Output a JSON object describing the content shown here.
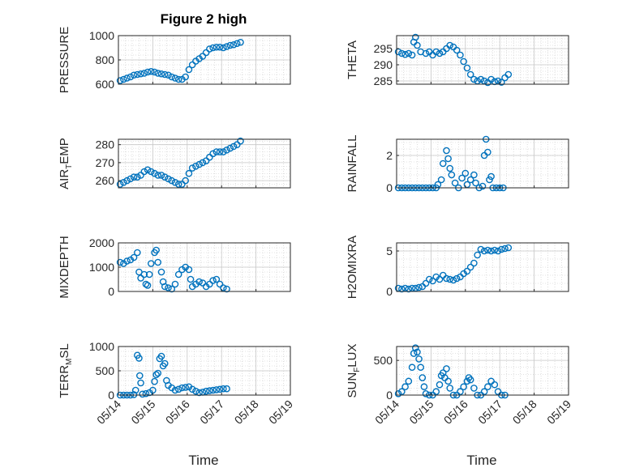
{
  "figure": {
    "title": "Figure 2 high"
  },
  "colors": {
    "marker": "#0072BD",
    "axis": "#262626",
    "grid": "#c7c7c7"
  },
  "chart_data": [
    {
      "type": "scatter",
      "id": "pressure",
      "col": 0,
      "row": 0,
      "ylabel": "PRESSURE",
      "ylim": [
        600,
        1000
      ],
      "yticks": [
        600,
        800,
        1000
      ],
      "xlim": [
        0,
        5
      ],
      "xticks": [
        "05/14",
        "05/15",
        "05/16",
        "05/17",
        "05/18",
        "05/19"
      ],
      "grid": true,
      "points": [
        [
          0.05,
          630
        ],
        [
          0.15,
          640
        ],
        [
          0.25,
          650
        ],
        [
          0.35,
          660
        ],
        [
          0.45,
          675
        ],
        [
          0.55,
          680
        ],
        [
          0.65,
          685
        ],
        [
          0.75,
          690
        ],
        [
          0.85,
          700
        ],
        [
          0.95,
          705
        ],
        [
          1.05,
          700
        ],
        [
          1.15,
          690
        ],
        [
          1.25,
          685
        ],
        [
          1.35,
          680
        ],
        [
          1.45,
          675
        ],
        [
          1.55,
          660
        ],
        [
          1.65,
          650
        ],
        [
          1.75,
          640
        ],
        [
          1.85,
          640
        ],
        [
          1.95,
          660
        ],
        [
          2.05,
          720
        ],
        [
          2.15,
          760
        ],
        [
          2.25,
          790
        ],
        [
          2.35,
          810
        ],
        [
          2.45,
          830
        ],
        [
          2.55,
          860
        ],
        [
          2.65,
          890
        ],
        [
          2.75,
          900
        ],
        [
          2.85,
          905
        ],
        [
          2.95,
          905
        ],
        [
          3.05,
          900
        ],
        [
          3.15,
          910
        ],
        [
          3.25,
          920
        ],
        [
          3.35,
          925
        ],
        [
          3.45,
          935
        ],
        [
          3.55,
          945
        ]
      ]
    },
    {
      "type": "scatter",
      "id": "theta",
      "col": 1,
      "row": 0,
      "ylabel": "THETA",
      "ylim": [
        284,
        299
      ],
      "yticks": [
        285,
        290,
        295
      ],
      "xlim": [
        0,
        5
      ],
      "xticks": [
        "05/14",
        "05/15",
        "05/16",
        "05/17",
        "05/18",
        "05/19"
      ],
      "grid": true,
      "points": [
        [
          0.05,
          294
        ],
        [
          0.15,
          293.5
        ],
        [
          0.25,
          293.2
        ],
        [
          0.35,
          293.5
        ],
        [
          0.45,
          293
        ],
        [
          0.5,
          297
        ],
        [
          0.55,
          298.5
        ],
        [
          0.6,
          296
        ],
        [
          0.7,
          294
        ],
        [
          0.85,
          293.5
        ],
        [
          0.95,
          294
        ],
        [
          1.05,
          293
        ],
        [
          1.15,
          294
        ],
        [
          1.25,
          293.5
        ],
        [
          1.35,
          294
        ],
        [
          1.45,
          295
        ],
        [
          1.55,
          296
        ],
        [
          1.65,
          295.5
        ],
        [
          1.75,
          294.5
        ],
        [
          1.85,
          293
        ],
        [
          1.95,
          291
        ],
        [
          2.05,
          289
        ],
        [
          2.15,
          287
        ],
        [
          2.25,
          285.5
        ],
        [
          2.35,
          285
        ],
        [
          2.45,
          285.5
        ],
        [
          2.55,
          285
        ],
        [
          2.65,
          284.5
        ],
        [
          2.75,
          285.5
        ],
        [
          2.85,
          284.8
        ],
        [
          2.95,
          285
        ],
        [
          3.05,
          284.6
        ],
        [
          3.15,
          286
        ],
        [
          3.25,
          287
        ]
      ]
    },
    {
      "type": "scatter",
      "id": "air_temp",
      "col": 0,
      "row": 1,
      "ylabel": "AIR_TEMP",
      "ylim": [
        256,
        283
      ],
      "yticks": [
        260,
        270,
        280
      ],
      "xlim": [
        0,
        5
      ],
      "xticks": [
        "05/14",
        "05/15",
        "05/16",
        "05/17",
        "05/18",
        "05/19"
      ],
      "grid": true,
      "points": [
        [
          0.05,
          258
        ],
        [
          0.15,
          259
        ],
        [
          0.25,
          260
        ],
        [
          0.35,
          261
        ],
        [
          0.45,
          262
        ],
        [
          0.55,
          262
        ],
        [
          0.65,
          263
        ],
        [
          0.75,
          265
        ],
        [
          0.85,
          266
        ],
        [
          0.95,
          265
        ],
        [
          1.05,
          264
        ],
        [
          1.15,
          263
        ],
        [
          1.25,
          263
        ],
        [
          1.35,
          262
        ],
        [
          1.45,
          261
        ],
        [
          1.55,
          260
        ],
        [
          1.65,
          259
        ],
        [
          1.75,
          258
        ],
        [
          1.85,
          258
        ],
        [
          1.95,
          260
        ],
        [
          2.05,
          264
        ],
        [
          2.15,
          267
        ],
        [
          2.25,
          268
        ],
        [
          2.35,
          269
        ],
        [
          2.45,
          270
        ],
        [
          2.55,
          271
        ],
        [
          2.65,
          273
        ],
        [
          2.75,
          275
        ],
        [
          2.85,
          276
        ],
        [
          2.95,
          276
        ],
        [
          3.05,
          276
        ],
        [
          3.15,
          277
        ],
        [
          3.25,
          278
        ],
        [
          3.35,
          279
        ],
        [
          3.45,
          280
        ],
        [
          3.55,
          282
        ]
      ]
    },
    {
      "type": "scatter",
      "id": "rainfall",
      "col": 1,
      "row": 1,
      "ylabel": "RAINFALL",
      "ylim": [
        0,
        3
      ],
      "yticks": [
        0,
        2
      ],
      "xlim": [
        0,
        5
      ],
      "xticks": [
        "05/14",
        "05/15",
        "05/16",
        "05/17",
        "05/18",
        "05/19"
      ],
      "grid": true,
      "points": [
        [
          0.05,
          0
        ],
        [
          0.15,
          0
        ],
        [
          0.25,
          0
        ],
        [
          0.35,
          0
        ],
        [
          0.45,
          0
        ],
        [
          0.55,
          0
        ],
        [
          0.65,
          0
        ],
        [
          0.75,
          0
        ],
        [
          0.85,
          0
        ],
        [
          0.95,
          0
        ],
        [
          1.05,
          0
        ],
        [
          1.15,
          0
        ],
        [
          1.2,
          0.2
        ],
        [
          1.3,
          0.5
        ],
        [
          1.35,
          1.5
        ],
        [
          1.45,
          2.3
        ],
        [
          1.5,
          1.8
        ],
        [
          1.55,
          1.2
        ],
        [
          1.6,
          0.8
        ],
        [
          1.7,
          0.3
        ],
        [
          1.8,
          0
        ],
        [
          1.9,
          0.6
        ],
        [
          2.0,
          0.9
        ],
        [
          2.05,
          0.2
        ],
        [
          2.15,
          0.5
        ],
        [
          2.25,
          0.8
        ],
        [
          2.3,
          0.3
        ],
        [
          2.4,
          0
        ],
        [
          2.5,
          0.1
        ],
        [
          2.55,
          2.0
        ],
        [
          2.6,
          3.0
        ],
        [
          2.65,
          2.2
        ],
        [
          2.7,
          0.5
        ],
        [
          2.75,
          0.7
        ],
        [
          2.8,
          0
        ],
        [
          2.9,
          0
        ],
        [
          3.0,
          0
        ],
        [
          3.1,
          0
        ]
      ]
    },
    {
      "type": "scatter",
      "id": "mixdepth",
      "col": 0,
      "row": 2,
      "ylabel": "MIXDEPTH",
      "ylim": [
        0,
        2000
      ],
      "yticks": [
        0,
        1000,
        2000
      ],
      "xlim": [
        0,
        5
      ],
      "xticks": [
        "05/14",
        "05/15",
        "05/16",
        "05/17",
        "05/18",
        "05/19"
      ],
      "grid": true,
      "points": [
        [
          0.05,
          1200
        ],
        [
          0.15,
          1150
        ],
        [
          0.25,
          1250
        ],
        [
          0.35,
          1300
        ],
        [
          0.45,
          1400
        ],
        [
          0.55,
          1600
        ],
        [
          0.6,
          800
        ],
        [
          0.65,
          550
        ],
        [
          0.75,
          700
        ],
        [
          0.8,
          300
        ],
        [
          0.85,
          250
        ],
        [
          0.9,
          700
        ],
        [
          0.95,
          1150
        ],
        [
          1.05,
          1600
        ],
        [
          1.1,
          1700
        ],
        [
          1.15,
          1200
        ],
        [
          1.25,
          800
        ],
        [
          1.3,
          400
        ],
        [
          1.35,
          200
        ],
        [
          1.45,
          150
        ],
        [
          1.55,
          100
        ],
        [
          1.65,
          300
        ],
        [
          1.75,
          700
        ],
        [
          1.85,
          900
        ],
        [
          1.95,
          1000
        ],
        [
          2.05,
          900
        ],
        [
          2.1,
          500
        ],
        [
          2.15,
          200
        ],
        [
          2.25,
          300
        ],
        [
          2.35,
          400
        ],
        [
          2.45,
          350
        ],
        [
          2.55,
          200
        ],
        [
          2.65,
          300
        ],
        [
          2.75,
          450
        ],
        [
          2.85,
          500
        ],
        [
          2.95,
          300
        ],
        [
          3.05,
          150
        ],
        [
          3.15,
          100
        ]
      ]
    },
    {
      "type": "scatter",
      "id": "h2omixra",
      "col": 1,
      "row": 2,
      "ylabel": "H2OMIXRA",
      "ylim": [
        0,
        6
      ],
      "yticks": [
        0,
        5
      ],
      "xlim": [
        0,
        5
      ],
      "xticks": [
        "05/14",
        "05/15",
        "05/16",
        "05/17",
        "05/18",
        "05/19"
      ],
      "grid": true,
      "points": [
        [
          0.05,
          0.4
        ],
        [
          0.15,
          0.3
        ],
        [
          0.25,
          0.4
        ],
        [
          0.35,
          0.3
        ],
        [
          0.45,
          0.4
        ],
        [
          0.55,
          0.4
        ],
        [
          0.65,
          0.5
        ],
        [
          0.75,
          0.6
        ],
        [
          0.85,
          1.0
        ],
        [
          0.95,
          1.5
        ],
        [
          1.05,
          1.3
        ],
        [
          1.15,
          1.8
        ],
        [
          1.25,
          1.5
        ],
        [
          1.35,
          2.0
        ],
        [
          1.45,
          1.6
        ],
        [
          1.55,
          1.5
        ],
        [
          1.65,
          1.4
        ],
        [
          1.75,
          1.6
        ],
        [
          1.85,
          1.8
        ],
        [
          1.95,
          2.2
        ],
        [
          2.05,
          2.5
        ],
        [
          2.15,
          3.0
        ],
        [
          2.25,
          3.5
        ],
        [
          2.35,
          4.5
        ],
        [
          2.45,
          5.2
        ],
        [
          2.55,
          5.0
        ],
        [
          2.65,
          5.1
        ],
        [
          2.75,
          5.0
        ],
        [
          2.85,
          5.1
        ],
        [
          2.95,
          5.0
        ],
        [
          3.05,
          5.2
        ],
        [
          3.15,
          5.3
        ],
        [
          3.25,
          5.4
        ]
      ]
    },
    {
      "type": "scatter",
      "id": "terr_msl",
      "col": 0,
      "row": 3,
      "ylabel": "TERR_MSL",
      "ylim": [
        0,
        1000
      ],
      "yticks": [
        0,
        500,
        1000
      ],
      "xlim": [
        0,
        5
      ],
      "xticks": [
        "05/14",
        "05/15",
        "05/16",
        "05/17",
        "05/18",
        "05/19"
      ],
      "grid": true,
      "points": [
        [
          0.05,
          0
        ],
        [
          0.15,
          0
        ],
        [
          0.25,
          0
        ],
        [
          0.35,
          0
        ],
        [
          0.45,
          10
        ],
        [
          0.5,
          100
        ],
        [
          0.55,
          820
        ],
        [
          0.6,
          760
        ],
        [
          0.62,
          400
        ],
        [
          0.65,
          250
        ],
        [
          0.7,
          20
        ],
        [
          0.8,
          30
        ],
        [
          0.9,
          50
        ],
        [
          1.0,
          100
        ],
        [
          1.05,
          280
        ],
        [
          1.1,
          420
        ],
        [
          1.15,
          450
        ],
        [
          1.2,
          750
        ],
        [
          1.25,
          800
        ],
        [
          1.3,
          600
        ],
        [
          1.35,
          650
        ],
        [
          1.4,
          300
        ],
        [
          1.45,
          200
        ],
        [
          1.55,
          150
        ],
        [
          1.65,
          100
        ],
        [
          1.75,
          120
        ],
        [
          1.85,
          150
        ],
        [
          1.95,
          160
        ],
        [
          2.05,
          170
        ],
        [
          2.15,
          120
        ],
        [
          2.25,
          80
        ],
        [
          2.35,
          50
        ],
        [
          2.45,
          60
        ],
        [
          2.55,
          80
        ],
        [
          2.65,
          90
        ],
        [
          2.75,
          100
        ],
        [
          2.85,
          110
        ],
        [
          2.95,
          120
        ],
        [
          3.05,
          130
        ],
        [
          3.15,
          130
        ]
      ]
    },
    {
      "type": "scatter",
      "id": "sun_flux",
      "col": 1,
      "row": 3,
      "ylabel": "SUN_FLUX",
      "ylim": [
        0,
        700
      ],
      "yticks": [
        0,
        500
      ],
      "xlim": [
        0,
        5
      ],
      "xticks": [
        "05/14",
        "05/15",
        "05/16",
        "05/17",
        "05/18",
        "05/19"
      ],
      "grid": true,
      "points": [
        [
          0.05,
          20
        ],
        [
          0.15,
          50
        ],
        [
          0.25,
          120
        ],
        [
          0.35,
          200
        ],
        [
          0.45,
          400
        ],
        [
          0.5,
          600
        ],
        [
          0.55,
          680
        ],
        [
          0.6,
          620
        ],
        [
          0.65,
          520
        ],
        [
          0.7,
          400
        ],
        [
          0.75,
          250
        ],
        [
          0.8,
          120
        ],
        [
          0.85,
          20
        ],
        [
          0.95,
          0
        ],
        [
          1.05,
          0
        ],
        [
          1.15,
          50
        ],
        [
          1.25,
          150
        ],
        [
          1.3,
          280
        ],
        [
          1.35,
          320
        ],
        [
          1.4,
          250
        ],
        [
          1.45,
          380
        ],
        [
          1.5,
          200
        ],
        [
          1.55,
          100
        ],
        [
          1.65,
          0
        ],
        [
          1.75,
          0
        ],
        [
          1.85,
          50
        ],
        [
          1.95,
          120
        ],
        [
          2.05,
          200
        ],
        [
          2.1,
          250
        ],
        [
          2.15,
          220
        ],
        [
          2.25,
          100
        ],
        [
          2.35,
          0
        ],
        [
          2.45,
          0
        ],
        [
          2.55,
          50
        ],
        [
          2.65,
          120
        ],
        [
          2.75,
          200
        ],
        [
          2.85,
          150
        ],
        [
          2.95,
          50
        ],
        [
          3.05,
          0
        ],
        [
          3.15,
          0
        ]
      ]
    }
  ],
  "xlabel": "Time"
}
